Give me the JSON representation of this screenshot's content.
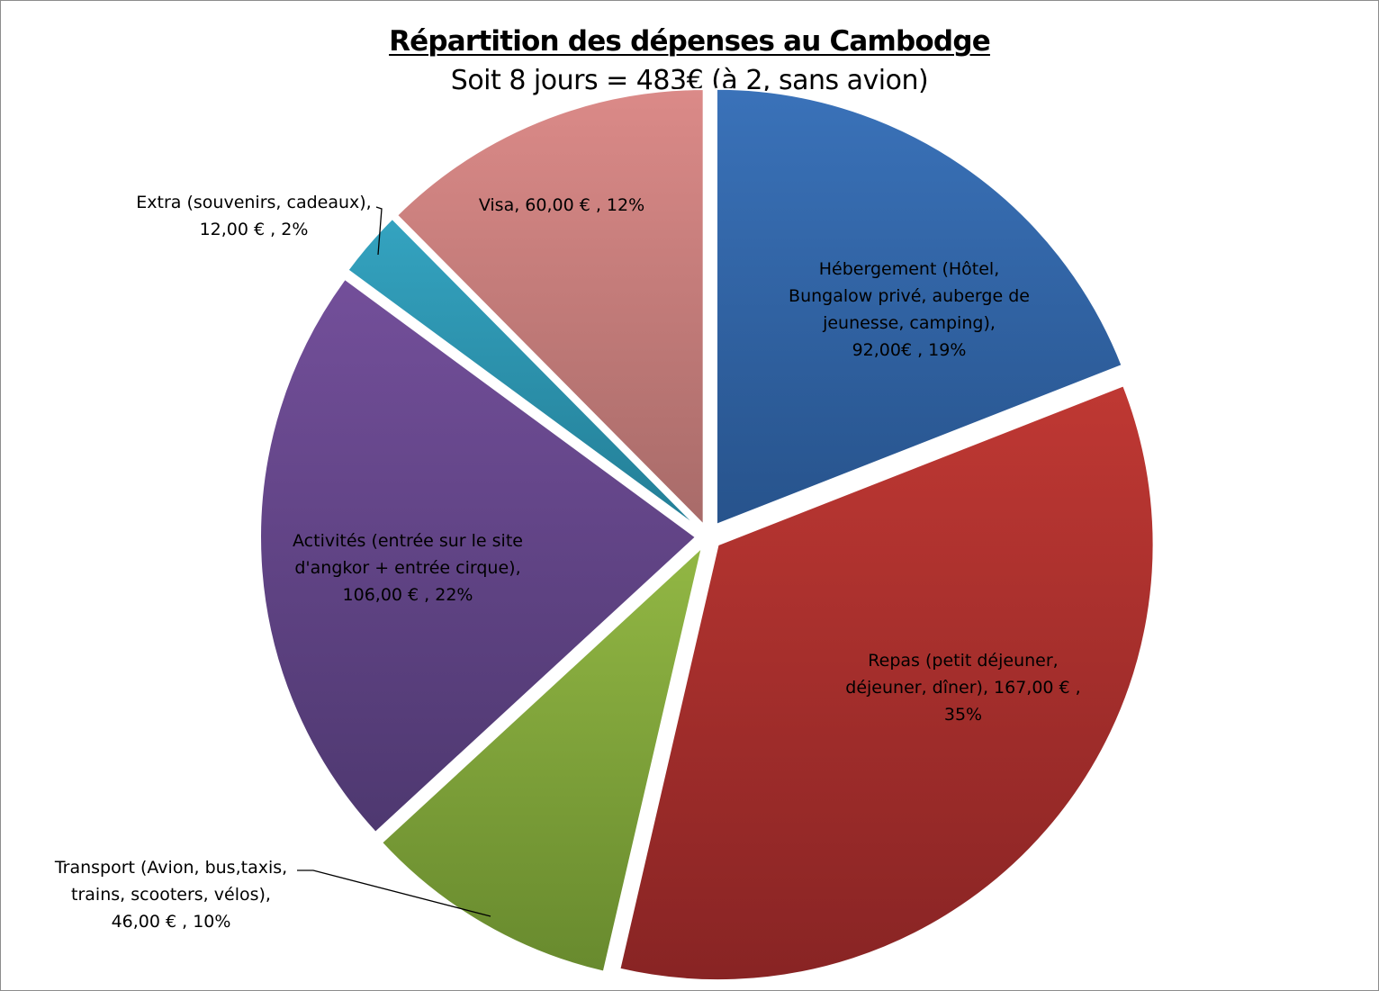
{
  "chart_data": {
    "type": "pie",
    "title": "Répartition des dépenses au Cambodge",
    "subtitle": "Soit 8 jours = 483€ (à 2, sans avion)",
    "legend": "none",
    "slices": [
      {
        "label": [
          "Hébergement (Hôtel,",
          "Bungalow privé, auberge de",
          "jeunesse, camping),",
          "92,00€ , 19%"
        ],
        "value": 92,
        "percent": 19,
        "color_top": "#3a72b9",
        "color_bottom": "#27538c"
      },
      {
        "label": [
          "Repas (petit déjeuner,",
          "déjeuner, dîner),  167,00 € ,",
          "35%"
        ],
        "value": 167,
        "percent": 35,
        "color_top": "#bf3833",
        "color_bottom": "#882424"
      },
      {
        "label": [
          "Transport (Avion, bus,taxis,",
          "trains, scooters, vélos),",
          "46,00 € , 10%"
        ],
        "value": 46,
        "percent": 10,
        "color_top": "#92b744",
        "color_bottom": "#688a2e"
      },
      {
        "label": [
          "Activités (entrée sur le site",
          "d'angkor + entrée cirque),",
          "106,00 € , 22%"
        ],
        "value": 106,
        "percent": 22,
        "color_top": "#734f9a",
        "color_bottom": "#4e3870"
      },
      {
        "label": [
          "Extra (souvenirs, cadeaux),",
          "12,00 € , 2%"
        ],
        "value": 12,
        "percent": 2,
        "color_top": "#34a3c0",
        "color_bottom": "#237e96"
      },
      {
        "label": [
          "Visa,  60,00 € , 12%"
        ],
        "value": 60,
        "percent": 12,
        "color_top": "#db8a88",
        "color_bottom": "#a86b69"
      }
    ]
  }
}
